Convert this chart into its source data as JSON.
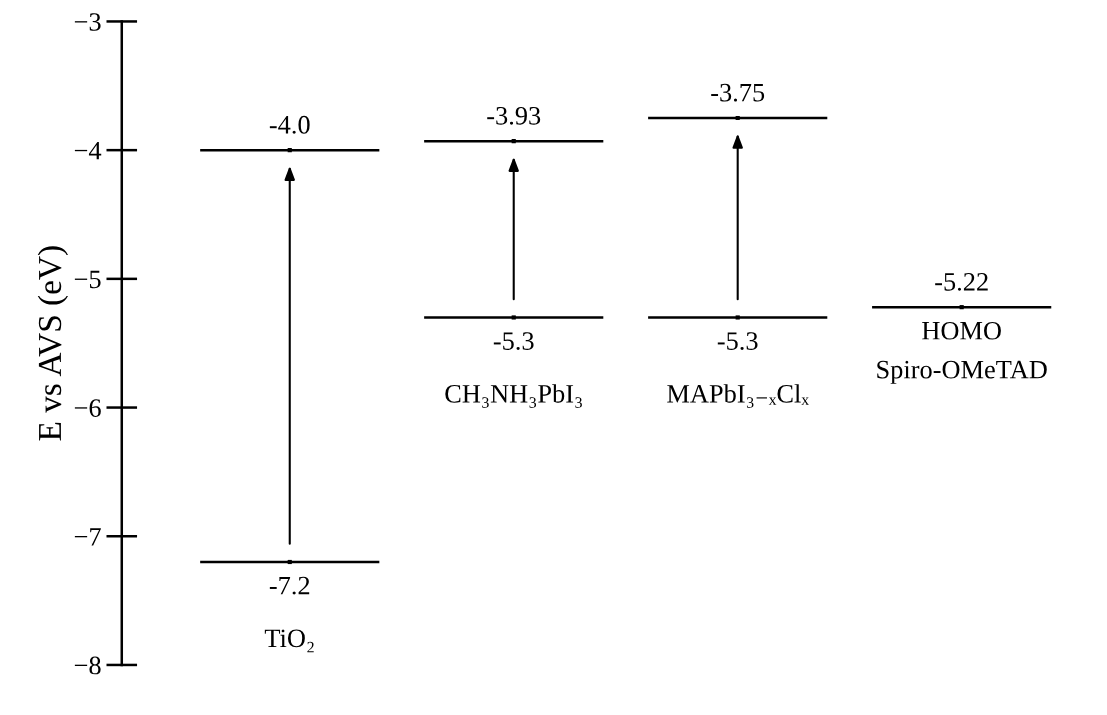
{
  "chart_data": {
    "type": "scatter",
    "ylabel": "E vs AVS (eV)",
    "ylim": [
      -8,
      -3
    ],
    "yticks": [
      {
        "value": -3,
        "label": "−3"
      },
      {
        "value": -4,
        "label": "−4"
      },
      {
        "value": -5,
        "label": "−5"
      },
      {
        "value": -6,
        "label": "−6"
      },
      {
        "value": -7,
        "label": "−7"
      },
      {
        "value": -8,
        "label": "−8"
      }
    ],
    "categories": [
      "TiO₂",
      "CH₃NH₃PbI₃",
      "MAPbI₃₋ₓClₓ",
      "Spiro-OMeTAD"
    ],
    "series": [
      {
        "color": "#000000",
        "values": [
          -4.0,
          -3.93,
          -3.75,
          null
        ],
        "value_labels": [
          "-4.0",
          "-3.93",
          "-3.75",
          null
        ]
      },
      {
        "color": "#000000",
        "values": [
          -7.2,
          -5.3,
          -5.3,
          -5.22
        ],
        "value_labels": [
          "-7.2",
          "-5.3",
          "-5.3",
          "-5.22"
        ]
      }
    ],
    "annotations": [
      "HOMO"
    ]
  }
}
